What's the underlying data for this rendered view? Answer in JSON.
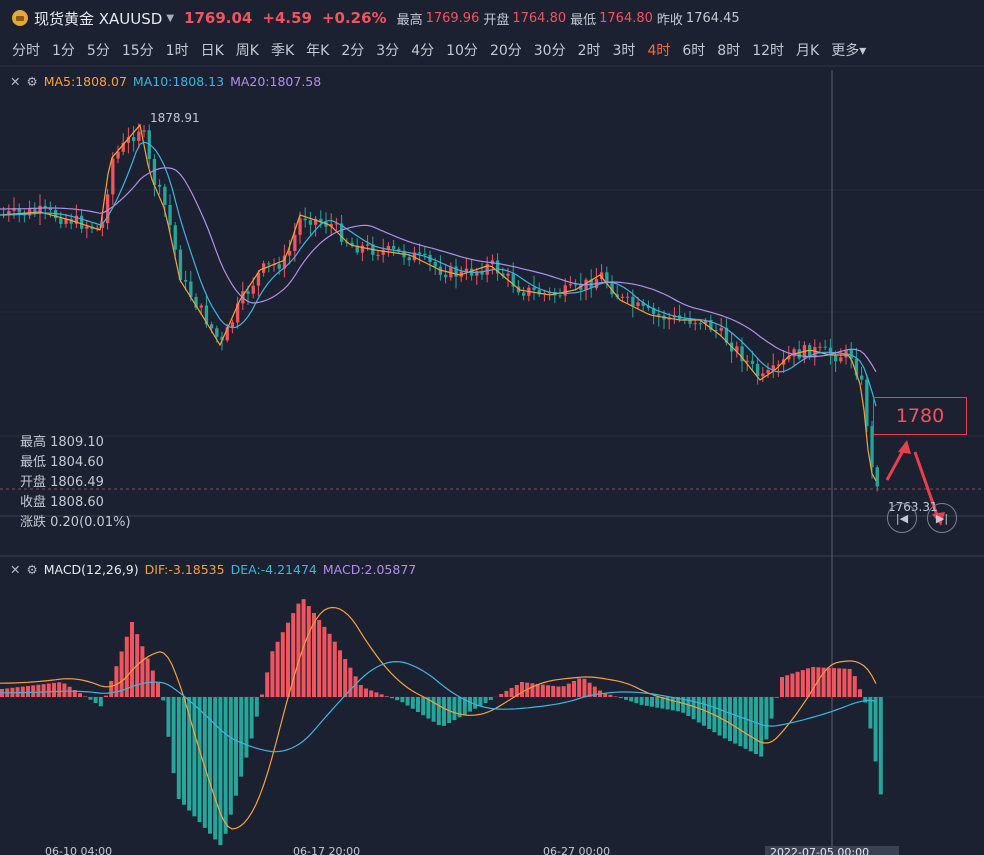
{
  "header": {
    "symbol": "现货黄金 XAUUSD",
    "price": "1769.04",
    "change": "+4.59",
    "change_pct": "+0.26%",
    "high_label": "最高",
    "high": "1769.96",
    "open_label": "开盘",
    "open": "1764.80",
    "low_label": "最低",
    "low": "1764.80",
    "prev_label": "昨收",
    "prev": "1764.45",
    "accent_up": "#f0545e",
    "accent_down": "#26a69a"
  },
  "timeframes": [
    "分时",
    "1分",
    "5分",
    "15分",
    "1时",
    "日K",
    "周K",
    "季K",
    "年K",
    "2分",
    "3分",
    "4分",
    "10分",
    "20分",
    "30分",
    "2时",
    "3时",
    "4时",
    "6时",
    "8时",
    "12时",
    "月K",
    "更多▾"
  ],
  "active_timeframe": "4时",
  "main_legend": {
    "ma5": "MA5:1808.07",
    "ma10": "MA10:1808.13",
    "ma20": "MA20:1807.58"
  },
  "ohlc": {
    "high": "最高 1809.10",
    "low": "最低 1804.60",
    "open": "开盘 1806.49",
    "close": "收盘 1808.60",
    "change": "涨跌 0.20(0.01%)"
  },
  "annotations": {
    "peak_label": "1878.91",
    "low_label": "1763.31",
    "price_box": "1780"
  },
  "macd_legend": {
    "name": "MACD(12,26,9)",
    "dif": "DIF:-3.18535",
    "dea": "DEA:-4.21474",
    "macd": "MACD:2.05877"
  },
  "x_axis": {
    "t1": "06-10 04:00",
    "t2": "06-17 20:00",
    "t3": "06-27 00:00",
    "t4": "2022-07-05 00:00"
  },
  "icons": {
    "close": "close-icon",
    "settings": "settings-icon",
    "prev": "prev-icon",
    "next": "next-icon"
  }
}
